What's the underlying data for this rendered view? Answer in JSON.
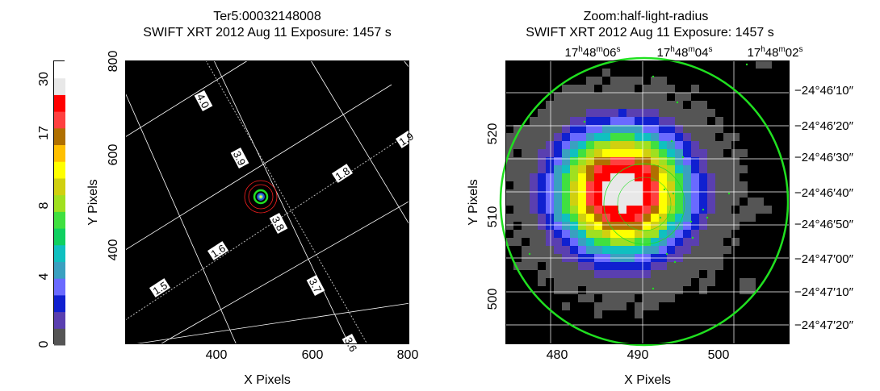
{
  "left": {
    "title": "Ter5:00032148008",
    "subtitle": "SWIFT XRT   2012 Aug 11     Exposure: 1457 s",
    "xlabel": "X Pixels",
    "ylabel": "Y Pixels",
    "xticks": [
      "400",
      "600",
      "800"
    ],
    "yticks": [
      "400",
      "600",
      "800"
    ],
    "grid_labels": [
      "4.0",
      "3.9",
      "3.8",
      "3.7",
      "3.6",
      "1.9",
      "1.8",
      "1.6",
      "1.5"
    ]
  },
  "right": {
    "title": "Zoom:half-light-radius",
    "subtitle": "SWIFT XRT   2012 Aug 11     Exposure: 1457 s",
    "xlabel": "X Pixels",
    "ylabel": "Y Pixels",
    "xticks": [
      "480",
      "490",
      "500"
    ],
    "yticks": [
      "500",
      "510",
      "520"
    ],
    "ra_ticks": [
      {
        "h": "17",
        "m": "48",
        "s": "06"
      },
      {
        "h": "17",
        "m": "48",
        "s": "04"
      },
      {
        "h": "17",
        "m": "48",
        "s": "02"
      }
    ],
    "dec_ticks": [
      "−24°46′10″",
      "−24°46′20″",
      "−24°46′30″",
      "−24°46′40″",
      "−24°46′50″",
      "−24°47′00″",
      "−24°47′10″",
      "−24°47′20″"
    ]
  },
  "colorbar": {
    "ticks": [
      "0",
      "4",
      "8",
      "17",
      "30"
    ],
    "colors": [
      "#555555",
      "#5a3fb0",
      "#1020d0",
      "#6a6aff",
      "#3aa0c0",
      "#10c0c0",
      "#10d060",
      "#40e040",
      "#a0e020",
      "#d0d010",
      "#ffff00",
      "#ffc000",
      "#b07000",
      "#ff4040",
      "#ff0000",
      "#e8e8e8",
      "#ffffff"
    ]
  },
  "chart_data": [
    {
      "type": "heatmap",
      "title": "Ter5:00032148008",
      "xlabel": "X Pixels",
      "ylabel": "Y Pixels",
      "xlim": [
        200,
        800
      ],
      "ylim": [
        200,
        800
      ],
      "source_position": [
        491,
        510
      ],
      "grid": true
    },
    {
      "type": "heatmap",
      "title": "Zoom:half-light-radius",
      "xlabel": "X Pixels",
      "ylabel": "Y Pixels",
      "xlim": [
        473.5,
        508.5
      ],
      "ylim": [
        493.5,
        528.5
      ],
      "source_position": [
        488,
        512
      ],
      "grid": true
    }
  ]
}
